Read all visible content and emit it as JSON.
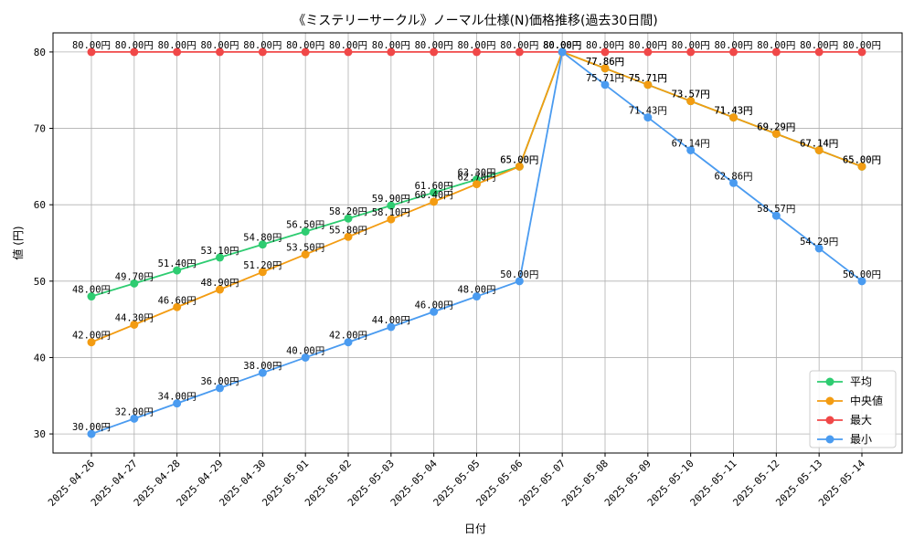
{
  "chart_data": {
    "type": "line",
    "title": "《ミステリーサークル》ノーマル仕様(N)価格推移(過去30日間)",
    "xlabel": "日付",
    "ylabel": "値 (円)",
    "ylim": [
      27.5,
      82.5
    ],
    "yticks": [
      30,
      40,
      50,
      60,
      70,
      80
    ],
    "grid": true,
    "legend_position": "lower-right",
    "value_suffix": "円",
    "categories": [
      "2025-04-26",
      "2025-04-27",
      "2025-04-28",
      "2025-04-29",
      "2025-04-30",
      "2025-05-01",
      "2025-05-02",
      "2025-05-03",
      "2025-05-04",
      "2025-05-05",
      "2025-05-06",
      "2025-05-07",
      "2025-05-08",
      "2025-05-09",
      "2025-05-10",
      "2025-05-11",
      "2025-05-12",
      "2025-05-13",
      "2025-05-14"
    ],
    "series": [
      {
        "name": "平均",
        "color": "#2ecc71",
        "values": [
          48.0,
          49.7,
          51.4,
          53.1,
          54.8,
          56.5,
          58.2,
          59.9,
          61.6,
          63.3,
          65.0,
          80.0,
          77.86,
          75.71,
          73.57,
          71.43,
          69.29,
          67.14,
          65.0
        ]
      },
      {
        "name": "中央値",
        "color": "#f39c12",
        "values": [
          42.0,
          44.3,
          46.6,
          48.9,
          51.2,
          53.5,
          55.8,
          58.1,
          60.4,
          62.7,
          65.0,
          80.0,
          77.86,
          75.71,
          73.57,
          71.43,
          69.29,
          67.14,
          65.0
        ]
      },
      {
        "name": "最大",
        "color": "#f04848",
        "values": [
          80.0,
          80.0,
          80.0,
          80.0,
          80.0,
          80.0,
          80.0,
          80.0,
          80.0,
          80.0,
          80.0,
          80.0,
          80.0,
          80.0,
          80.0,
          80.0,
          80.0,
          80.0,
          80.0
        ]
      },
      {
        "name": "最小",
        "color": "#4a9bf0",
        "values": [
          30.0,
          32.0,
          34.0,
          36.0,
          38.0,
          40.0,
          42.0,
          44.0,
          46.0,
          48.0,
          50.0,
          80.0,
          75.71,
          71.43,
          67.14,
          62.86,
          58.57,
          54.29,
          50.0
        ]
      }
    ]
  }
}
